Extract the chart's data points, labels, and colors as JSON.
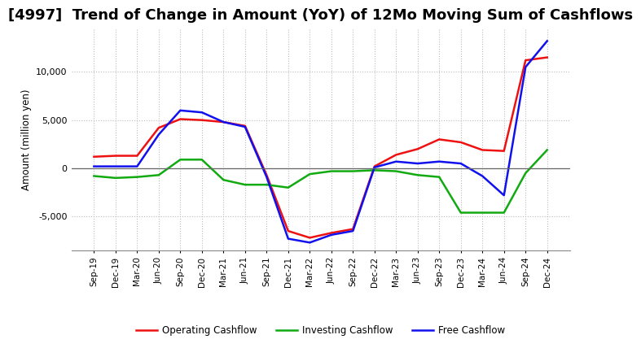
{
  "title": "[4997]  Trend of Change in Amount (YoY) of 12Mo Moving Sum of Cashflows",
  "ylabel": "Amount (million yen)",
  "x_labels": [
    "Sep-19",
    "Dec-19",
    "Mar-20",
    "Jun-20",
    "Sep-20",
    "Dec-20",
    "Mar-21",
    "Jun-21",
    "Sep-21",
    "Dec-21",
    "Mar-22",
    "Jun-22",
    "Sep-22",
    "Dec-22",
    "Mar-23",
    "Jun-23",
    "Sep-23",
    "Dec-23",
    "Mar-24",
    "Jun-24",
    "Sep-24",
    "Dec-24"
  ],
  "operating": [
    1200,
    1300,
    1300,
    4200,
    5100,
    5000,
    4800,
    4400,
    -700,
    -6500,
    -7200,
    -6700,
    -6300,
    200,
    1400,
    2000,
    3000,
    2700,
    1900,
    1800,
    11200,
    11500
  ],
  "investing": [
    -800,
    -1000,
    -900,
    -700,
    900,
    900,
    -1200,
    -1700,
    -1700,
    -2000,
    -600,
    -300,
    -300,
    -200,
    -300,
    -700,
    -900,
    -4600,
    -4600,
    -4600,
    -500,
    1900
  ],
  "free": [
    200,
    200,
    200,
    3500,
    6000,
    5800,
    4800,
    4300,
    -900,
    -7300,
    -7700,
    -6900,
    -6500,
    100,
    700,
    500,
    700,
    500,
    -800,
    -2800,
    10500,
    13200
  ],
  "operating_color": "#ee1111",
  "investing_color": "#11aa11",
  "free_color": "#1111ee",
  "ylim": [
    -8500,
    14500
  ],
  "yticks": [
    -5000,
    0,
    5000,
    10000
  ],
  "background_color": "#ffffff",
  "grid_color": "#bbbbbb",
  "title_fontsize": 13,
  "legend_labels": [
    "Operating Cashflow",
    "Investing Cashflow",
    "Free Cashflow"
  ]
}
